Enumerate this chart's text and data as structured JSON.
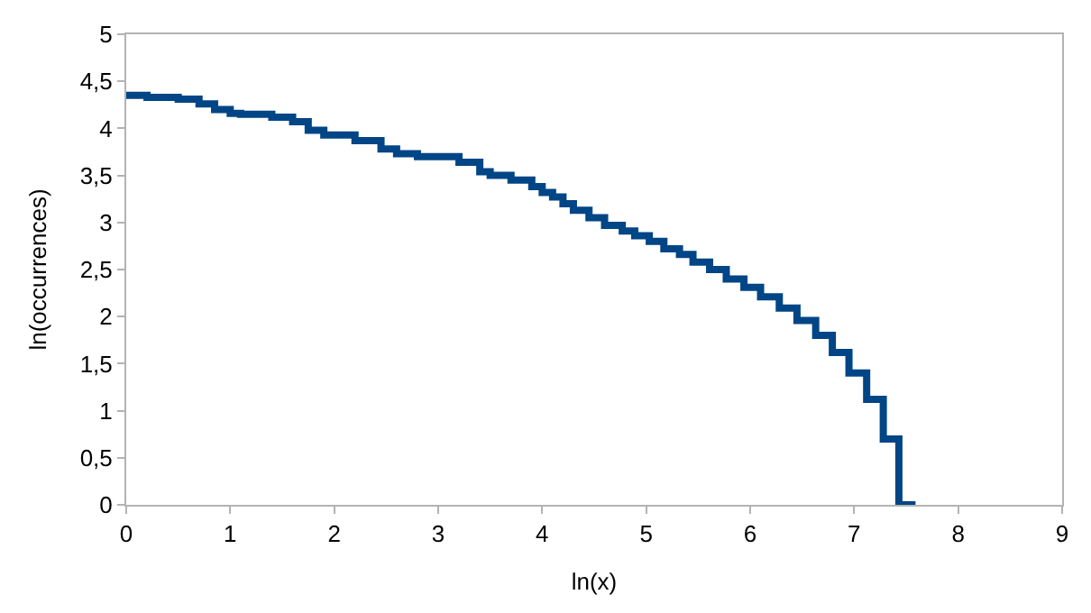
{
  "chart_data": {
    "type": "step",
    "xlabel": "ln(x)",
    "ylabel": "ln(occurrences)",
    "x": [
      0,
      0.2,
      0.5,
      0.7,
      0.85,
      1.0,
      1.1,
      1.4,
      1.6,
      1.75,
      1.9,
      2.2,
      2.45,
      2.6,
      2.8,
      2.95,
      3.2,
      3.4,
      3.5,
      3.7,
      3.9,
      4.0,
      4.1,
      4.2,
      4.3,
      4.45,
      4.6,
      4.77,
      4.89,
      5.03,
      5.17,
      5.32,
      5.45,
      5.61,
      5.77,
      5.94,
      6.1,
      6.28,
      6.45,
      6.63,
      6.79,
      6.95,
      7.12,
      7.28,
      7.43,
      7.59
    ],
    "values": [
      4.37,
      4.35,
      4.33,
      4.31,
      4.26,
      4.2,
      4.16,
      4.15,
      4.12,
      4.07,
      3.98,
      3.93,
      3.87,
      3.78,
      3.73,
      3.7,
      3.7,
      3.64,
      3.54,
      3.5,
      3.45,
      3.38,
      3.32,
      3.27,
      3.2,
      3.13,
      3.05,
      2.97,
      2.91,
      2.86,
      2.8,
      2.72,
      2.66,
      2.58,
      2.5,
      2.4,
      2.31,
      2.21,
      2.09,
      1.96,
      1.8,
      1.62,
      1.4,
      1.12,
      0.7,
      0
    ],
    "color": "#004586",
    "line_style": "solid",
    "marker": "none",
    "grid": false,
    "xlim": [
      0,
      9
    ],
    "xticks": [
      0,
      1,
      2,
      3,
      4,
      5,
      6,
      7,
      8,
      9
    ],
    "ylim": [
      0,
      5
    ],
    "yticks": [
      0,
      {
        "value": 0.5,
        "label": "0,5"
      },
      1,
      {
        "value": 1.5,
        "label": "1,5"
      },
      2,
      {
        "value": 2.5,
        "label": "2,5"
      },
      3,
      {
        "value": 3.5,
        "label": "3,5"
      },
      4,
      {
        "value": 4.5,
        "label": "4,5"
      },
      5
    ]
  }
}
